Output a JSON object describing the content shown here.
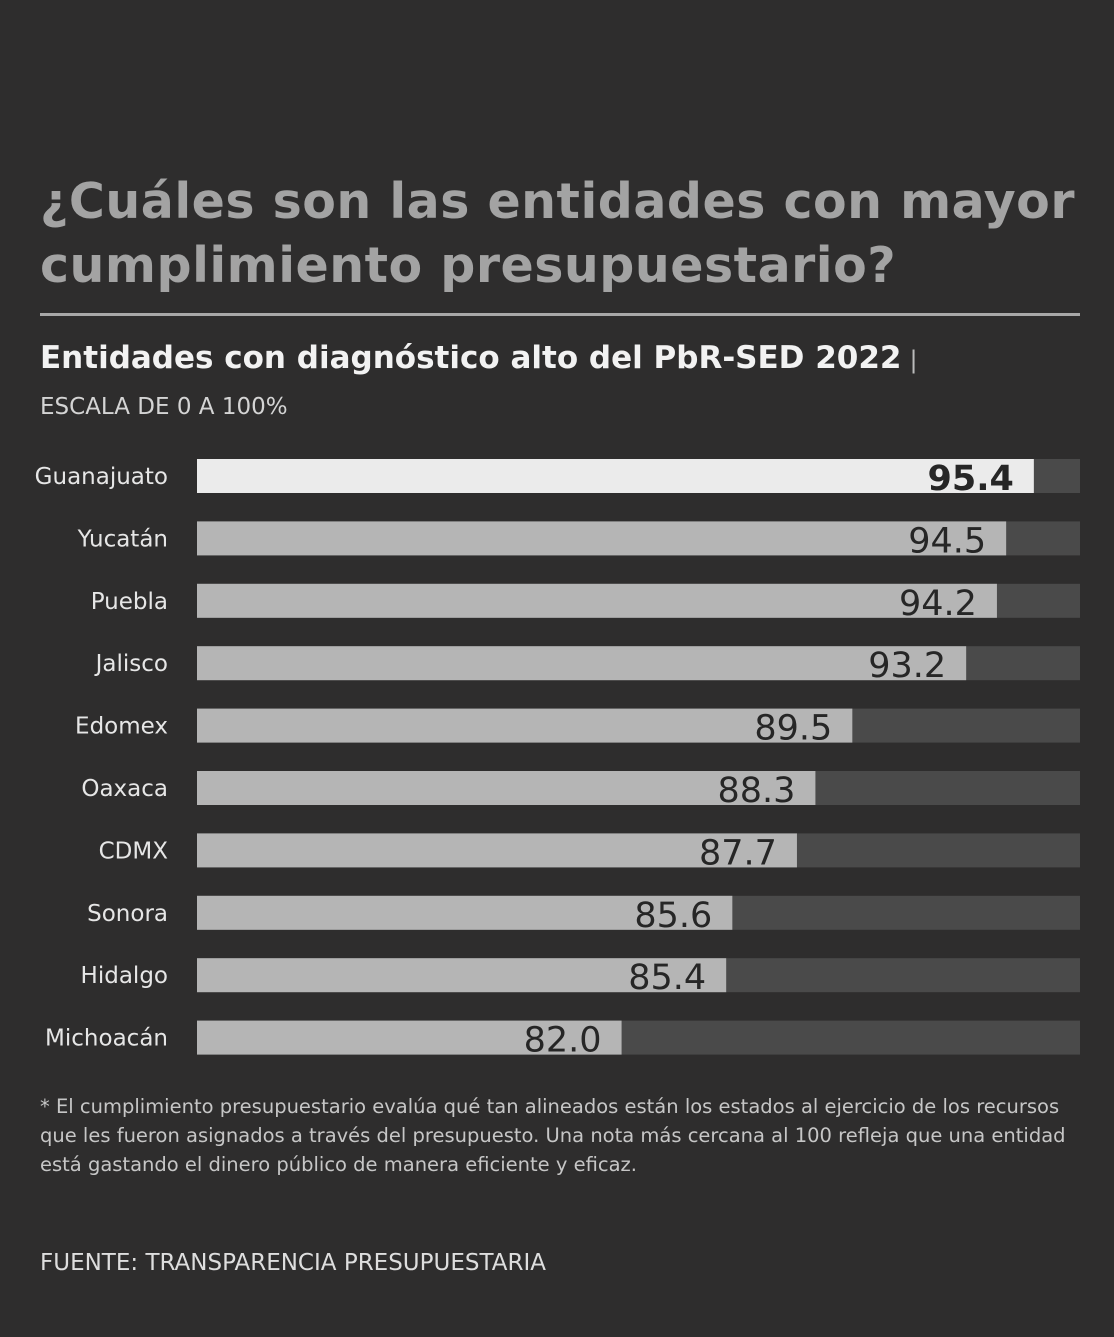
{
  "header": {
    "title": "¿Cuáles son las entidades con mayor cumplimiento presupuestario?",
    "subtitle": "Entidades con diagnóstico alto del PbR-SED 2022",
    "subtitle_separator": "|",
    "scale_note": "ESCALA DE 0 A 100%"
  },
  "chart_data": {
    "type": "bar",
    "orientation": "horizontal",
    "title": "Entidades con diagnóstico alto del PbR-SED 2022",
    "xlabel": "",
    "ylabel": "",
    "categories": [
      "Guanajuato",
      "Yucatán",
      "Puebla",
      "Jalisco",
      "Edomex",
      "Oaxaca",
      "CDMX",
      "Sonora",
      "Hidalgo",
      "Michoacán"
    ],
    "values": [
      95.4,
      94.5,
      94.2,
      93.2,
      89.5,
      88.3,
      87.7,
      85.6,
      85.4,
      82.0
    ],
    "labels": [
      "95.4",
      "94.5",
      "94.2",
      "93.2",
      "89.5",
      "88.3",
      "87.7",
      "85.6",
      "85.4",
      "82.0"
    ],
    "xlim": [
      68.2,
      96.9
    ],
    "grid": false,
    "highlight_index": 0,
    "colors": {
      "bar": "#b5b5b5",
      "highlight": "#ebebeb",
      "track": "#4a4a4a",
      "value_text": "#262626",
      "category_text": "#e6e6e6"
    }
  },
  "footer": {
    "note": "* El cumplimiento presupuestario evalúa qué tan alineados están los estados al ejercicio de los recursos que les fueron asignados a través del presupuesto. Una nota más cercana al 100 refleja que una entidad está gastando el dinero público de manera eficiente y eficaz.",
    "source": "FUENTE: TRANSPARENCIA PRESUPUESTARIA"
  }
}
